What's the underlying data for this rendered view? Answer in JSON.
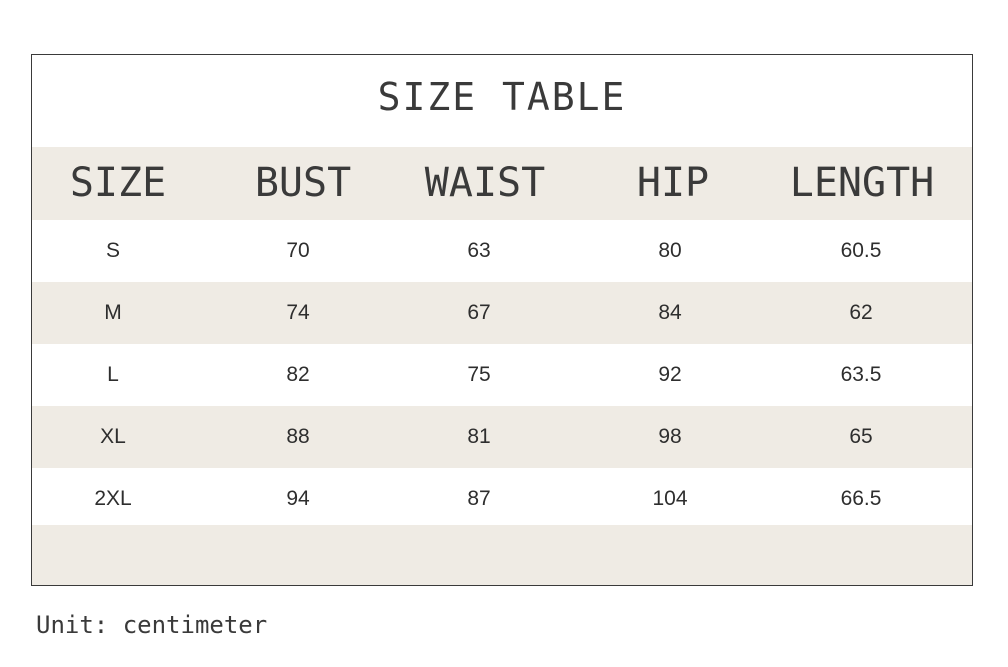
{
  "table": {
    "title": "SIZE TABLE",
    "columns": [
      "SIZE",
      "BUST",
      "WAIST",
      "HIP",
      "LENGTH"
    ],
    "rows": [
      [
        "S",
        "70",
        "63",
        "80",
        "60.5"
      ],
      [
        "M",
        "74",
        "67",
        "84",
        "62"
      ],
      [
        "L",
        "82",
        "75",
        "92",
        "63.5"
      ],
      [
        "XL",
        "88",
        "81",
        "98",
        "65"
      ],
      [
        "2XL",
        "94",
        "87",
        "104",
        "66.5"
      ]
    ]
  },
  "footer": {
    "unit_note": "Unit: centimeter"
  },
  "colors": {
    "band": "#efebe4",
    "text": "#3a3a3a",
    "border": "#3a3a3a"
  }
}
